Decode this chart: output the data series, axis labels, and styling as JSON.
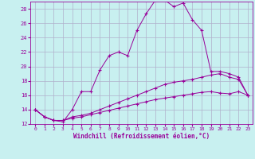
{
  "xlabel": "Windchill (Refroidissement éolien,°C)",
  "background_color": "#c8f0f0",
  "grid_color": "#b0b0cc",
  "line_color": "#990099",
  "xlim": [
    -0.5,
    23.5
  ],
  "ylim": [
    12,
    29
  ],
  "xticks": [
    0,
    1,
    2,
    3,
    4,
    5,
    6,
    7,
    8,
    9,
    10,
    11,
    12,
    13,
    14,
    15,
    16,
    17,
    18,
    19,
    20,
    21,
    22,
    23
  ],
  "yticks": [
    12,
    14,
    16,
    18,
    20,
    22,
    24,
    26,
    28
  ],
  "series": [
    {
      "x": [
        0,
        1,
        2,
        3,
        4,
        5,
        6,
        7,
        8,
        9,
        10,
        11,
        12,
        13,
        14,
        15,
        16,
        17,
        18,
        19,
        20,
        21,
        22,
        23
      ],
      "y": [
        14,
        13,
        12.5,
        12.3,
        14,
        16.5,
        16.5,
        19.5,
        21.5,
        22,
        21.5,
        25,
        27.3,
        29.2,
        29.2,
        28.3,
        28.8,
        26.5,
        25,
        19.3,
        19.3,
        19,
        18.5,
        16
      ]
    },
    {
      "x": [
        0,
        1,
        2,
        3,
        4,
        5,
        6,
        7,
        8,
        9,
        10,
        11,
        12,
        13,
        14,
        15,
        16,
        17,
        18,
        19,
        20,
        21,
        22,
        23
      ],
      "y": [
        14,
        13,
        12.5,
        12.5,
        13,
        13.2,
        13.5,
        14,
        14.5,
        15,
        15.5,
        16,
        16.5,
        17,
        17.5,
        17.8,
        18,
        18.2,
        18.5,
        18.8,
        19,
        18.5,
        18.2,
        16
      ]
    },
    {
      "x": [
        0,
        1,
        2,
        3,
        4,
        5,
        6,
        7,
        8,
        9,
        10,
        11,
        12,
        13,
        14,
        15,
        16,
        17,
        18,
        19,
        20,
        21,
        22,
        23
      ],
      "y": [
        14,
        13,
        12.5,
        12.5,
        12.8,
        13,
        13.3,
        13.6,
        13.9,
        14.2,
        14.5,
        14.8,
        15.1,
        15.4,
        15.6,
        15.8,
        16.0,
        16.2,
        16.4,
        16.5,
        16.3,
        16.2,
        16.5,
        16.0
      ]
    }
  ]
}
